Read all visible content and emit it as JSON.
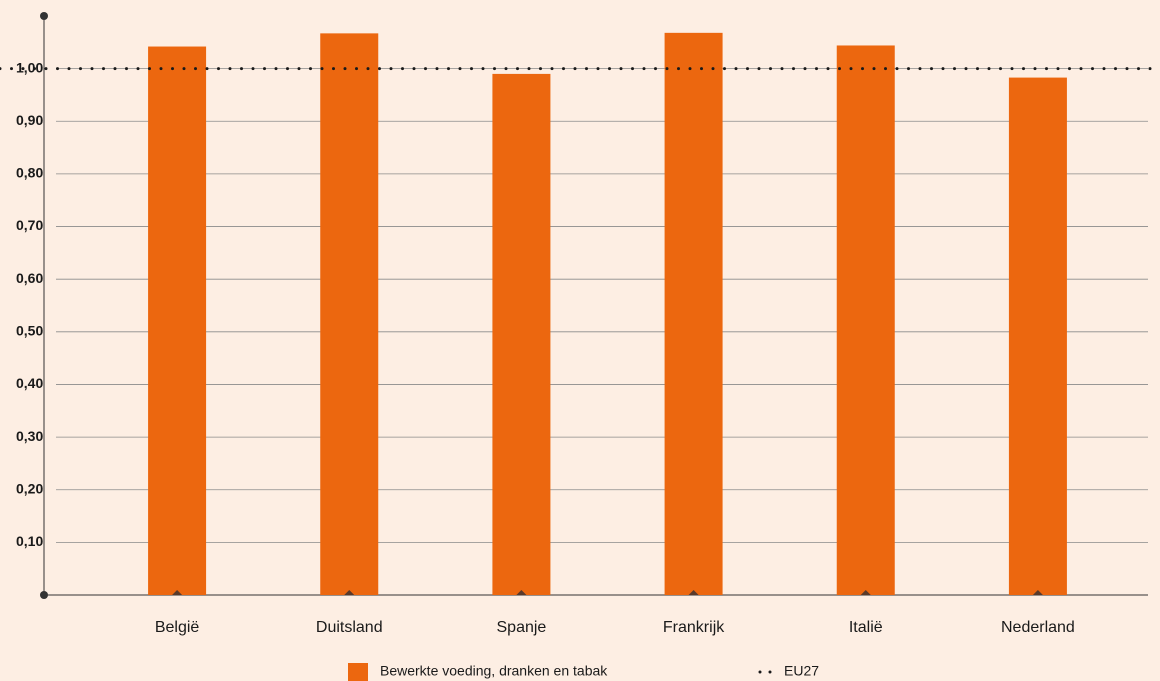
{
  "chart_data": {
    "type": "bar",
    "categories": [
      "België",
      "Duitsland",
      "Spanje",
      "Frankrijk",
      "Italië",
      "Nederland"
    ],
    "series": [
      {
        "name": "Bewerkte voeding, dranken en tabak",
        "color": "#ec670f",
        "values": [
          1.042,
          1.067,
          0.99,
          1.068,
          1.044,
          0.983
        ]
      }
    ],
    "reference": {
      "name": "EU27",
      "value": 1.0,
      "color": "#1a1a1a"
    },
    "ylim": [
      0,
      1.1
    ],
    "yticks": [
      {
        "value": 0.1,
        "label": "0,10"
      },
      {
        "value": 0.2,
        "label": "0,20"
      },
      {
        "value": 0.3,
        "label": "0,30"
      },
      {
        "value": 0.4,
        "label": "0,40"
      },
      {
        "value": 0.5,
        "label": "0,50"
      },
      {
        "value": 0.6,
        "label": "0,60"
      },
      {
        "value": 0.7,
        "label": "0,70"
      },
      {
        "value": 0.8,
        "label": "0,80"
      },
      {
        "value": 0.9,
        "label": "0,90"
      },
      {
        "value": 1.0,
        "label": "1,00"
      }
    ],
    "grid": true
  }
}
